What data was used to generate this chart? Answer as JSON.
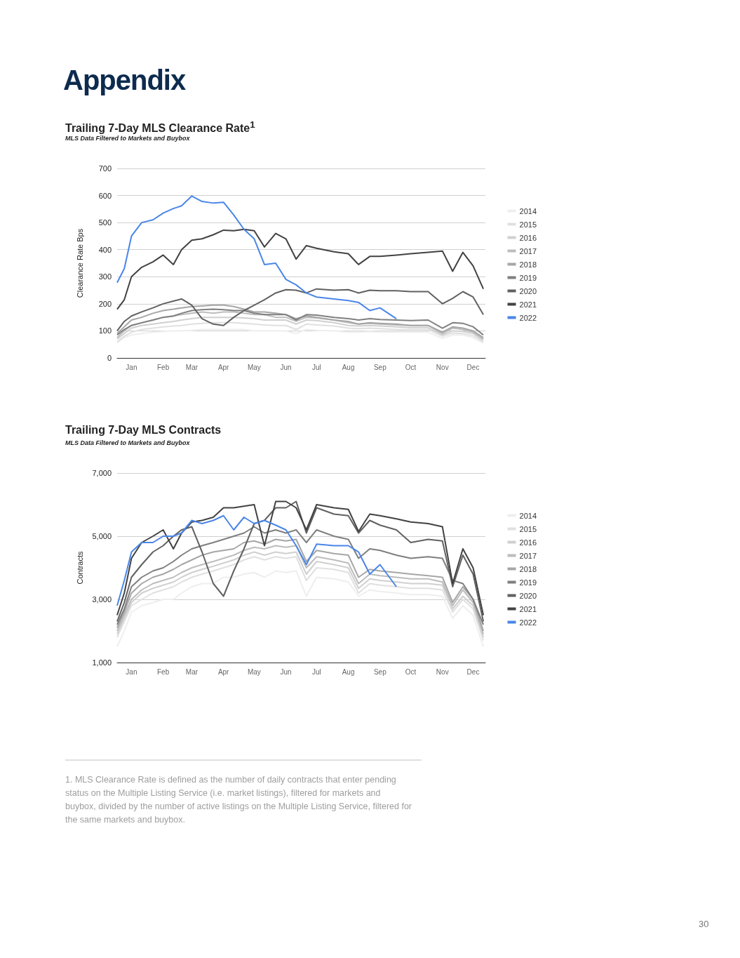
{
  "chart_data": [
    {
      "type": "line",
      "title": "Trailing 7-Day MLS Clearance Rate$^{1}$",
      "subtitle": "MLS Data Filtered to Markets and Buybox",
      "ylabel": "Clearance Rate Bps",
      "annotations": [
        "Appendix"
      ],
      "x": [
        "--01-01",
        "--01-08",
        "--01-15",
        "--01-25",
        "--02-05",
        "--02-15",
        "--02-25",
        "--03-05",
        "--03-15",
        "--03-25",
        "--04-05",
        "--04-15",
        "--04-25",
        "--05-05",
        "--05-15",
        "--05-25",
        "--06-05",
        "--06-15",
        "--06-25",
        "--07-05",
        "--07-15",
        "--08-01",
        "--08-15",
        "--08-25",
        "--09-05",
        "--09-15",
        "--10-01",
        "--10-15",
        "--11-01",
        "--11-15",
        "--11-25",
        "--12-05",
        "--12-15",
        "--12-25"
      ],
      "xlim": [
        "--01-01",
        "--12-27"
      ],
      "xticks": [
        {
          "value": "--01-15",
          "label": "Jan"
        },
        {
          "value": "--02-15",
          "label": "Feb"
        },
        {
          "value": "--03-15",
          "label": "Mar"
        },
        {
          "value": "--04-15",
          "label": "Apr"
        },
        {
          "value": "--05-15",
          "label": "May"
        },
        {
          "value": "--06-15",
          "label": "Jun"
        },
        {
          "value": "--07-15",
          "label": "Jul"
        },
        {
          "value": "--08-15",
          "label": "Aug"
        },
        {
          "value": "--09-15",
          "label": "Sep"
        },
        {
          "value": "--10-15",
          "label": "Oct"
        },
        {
          "value": "--11-15",
          "label": "Nov"
        },
        {
          "value": "--12-15",
          "label": "Dec"
        }
      ],
      "ylim": [
        0,
        700
      ],
      "yticks": [
        0,
        100,
        200,
        300,
        400,
        500,
        600,
        700
      ],
      "grid": "y",
      "legend": "right",
      "marker": "none",
      "series": [
        {
          "name": "2014",
          "color": "#eeeeee",
          "values": [
            55,
            75,
            85,
            90,
            95,
            98,
            100,
            100,
            102,
            105,
            105,
            105,
            105,
            105,
            100,
            100,
            100,
            100,
            90,
            105,
            102,
            100,
            95,
            95,
            98,
            95,
            95,
            95,
            95,
            72,
            85,
            85,
            75,
            55
          ]
        },
        {
          "name": "2015",
          "color": "#e0e0e0",
          "values": [
            60,
            80,
            95,
            105,
            110,
            115,
            118,
            120,
            125,
            128,
            130,
            130,
            130,
            128,
            125,
            122,
            120,
            120,
            105,
            125,
            122,
            118,
            110,
            108,
            110,
            108,
            105,
            105,
            105,
            80,
            92,
            90,
            82,
            60
          ]
        },
        {
          "name": "2016",
          "color": "#d0d0d0",
          "values": [
            70,
            90,
            110,
            120,
            125,
            130,
            135,
            140,
            145,
            150,
            150,
            150,
            150,
            148,
            145,
            140,
            140,
            140,
            125,
            140,
            138,
            130,
            120,
            118,
            120,
            118,
            115,
            112,
            112,
            85,
            100,
            98,
            90,
            65
          ]
        },
        {
          "name": "2017",
          "color": "#bdbdbd",
          "values": [
            75,
            100,
            120,
            130,
            140,
            150,
            155,
            160,
            165,
            170,
            165,
            170,
            170,
            165,
            160,
            160,
            150,
            150,
            135,
            150,
            148,
            140,
            130,
            125,
            128,
            125,
            122,
            120,
            120,
            90,
            110,
            105,
            95,
            70
          ]
        },
        {
          "name": "2018",
          "color": "#a6a6a6",
          "values": [
            90,
            115,
            140,
            150,
            165,
            175,
            180,
            185,
            190,
            192,
            195,
            195,
            190,
            180,
            170,
            170,
            165,
            160,
            145,
            155,
            150,
            140,
            135,
            125,
            130,
            128,
            125,
            120,
            120,
            95,
            115,
            110,
            100,
            75
          ]
        },
        {
          "name": "2019",
          "color": "#7f7f7f",
          "values": [
            85,
            105,
            120,
            130,
            140,
            150,
            155,
            165,
            175,
            178,
            180,
            178,
            175,
            175,
            165,
            160,
            160,
            160,
            140,
            160,
            158,
            150,
            145,
            140,
            145,
            142,
            140,
            138,
            140,
            110,
            130,
            128,
            115,
            85
          ]
        },
        {
          "name": "2020",
          "color": "#616161",
          "values": [
            100,
            135,
            155,
            170,
            185,
            200,
            210,
            218,
            195,
            145,
            125,
            120,
            150,
            175,
            195,
            215,
            240,
            252,
            250,
            240,
            255,
            250,
            252,
            240,
            250,
            248,
            248,
            245,
            245,
            200,
            220,
            245,
            225,
            160
          ]
        },
        {
          "name": "2021",
          "color": "#424242",
          "values": [
            180,
            215,
            300,
            335,
            355,
            380,
            345,
            400,
            435,
            440,
            455,
            472,
            470,
            475,
            470,
            410,
            460,
            440,
            365,
            415,
            405,
            392,
            385,
            345,
            375,
            375,
            380,
            385,
            390,
            395,
            320,
            390,
            340,
            255
          ]
        },
        {
          "name": "2022",
          "color": "#4a86e8",
          "values": [
            278,
            330,
            450,
            500,
            510,
            535,
            552,
            562,
            598,
            578,
            572,
            575,
            528,
            475,
            440,
            345,
            350,
            290,
            270,
            240,
            225,
            218,
            212,
            205,
            175,
            185,
            145,
            null,
            null,
            null,
            null,
            null,
            null,
            null
          ]
        }
      ]
    },
    {
      "type": "line",
      "title": "Trailing 7-Day MLS Contracts",
      "subtitle": "MLS Data Filtered to Markets and Buybox",
      "ylabel": "Contracts",
      "annotations": [
        "1. MLS Clearance Rate is defined as the number of daily contracts that enter pending status on the Multiple Listing Service (i.e. market listings), filtered for markets and buybox, divided by the number of active listings on the Multiple Listing Service, filtered for the same markets and buybox.",
        "30"
      ],
      "x": [
        "--01-01",
        "--01-08",
        "--01-15",
        "--01-25",
        "--02-05",
        "--02-15",
        "--02-25",
        "--03-05",
        "--03-15",
        "--03-25",
        "--04-05",
        "--04-15",
        "--04-25",
        "--05-05",
        "--05-15",
        "--05-25",
        "--06-05",
        "--06-15",
        "--06-25",
        "--07-05",
        "--07-15",
        "--08-01",
        "--08-15",
        "--08-25",
        "--09-05",
        "--09-15",
        "--10-01",
        "--10-15",
        "--11-01",
        "--11-15",
        "--11-25",
        "--12-05",
        "--12-15",
        "--12-25"
      ],
      "xlim": [
        "--01-01",
        "--12-27"
      ],
      "xticks": [
        {
          "value": "--01-15",
          "label": "Jan"
        },
        {
          "value": "--02-15",
          "label": "Feb"
        },
        {
          "value": "--03-15",
          "label": "Mar"
        },
        {
          "value": "--04-15",
          "label": "Apr"
        },
        {
          "value": "--05-15",
          "label": "May"
        },
        {
          "value": "--06-15",
          "label": "Jun"
        },
        {
          "value": "--07-15",
          "label": "Jul"
        },
        {
          "value": "--08-15",
          "label": "Aug"
        },
        {
          "value": "--09-15",
          "label": "Sep"
        },
        {
          "value": "--10-15",
          "label": "Oct"
        },
        {
          "value": "--11-15",
          "label": "Nov"
        },
        {
          "value": "--12-15",
          "label": "Dec"
        }
      ],
      "ylim": [
        1000,
        7000
      ],
      "yticks": [
        {
          "value": 1000,
          "label": "1,000"
        },
        {
          "value": 3000,
          "label": "3,000"
        },
        {
          "value": 5000,
          "label": "5,000"
        },
        {
          "value": 7000,
          "label": "7,000"
        }
      ],
      "grid": "y",
      "legend": "right",
      "marker": "none",
      "series": [
        {
          "name": "2014",
          "color": "#eeeeee",
          "values": [
            1500,
            2000,
            2600,
            2800,
            2900,
            3000,
            3000,
            3200,
            3400,
            3500,
            3500,
            3700,
            3700,
            3800,
            3850,
            3700,
            3900,
            3850,
            3900,
            3100,
            3700,
            3650,
            3550,
            3100,
            3300,
            3250,
            3200,
            3150,
            3150,
            3100,
            2400,
            2800,
            2500,
            1500
          ]
        },
        {
          "name": "2015",
          "color": "#e0e0e0",
          "values": [
            1800,
            2300,
            2800,
            3000,
            3200,
            3300,
            3400,
            3550,
            3700,
            3800,
            3900,
            4000,
            4100,
            4250,
            4350,
            4250,
            4350,
            4300,
            4350,
            3600,
            4000,
            3950,
            3850,
            3200,
            3500,
            3450,
            3400,
            3350,
            3350,
            3300,
            2600,
            3000,
            2700,
            1700
          ]
        },
        {
          "name": "2016",
          "color": "#d0d0d0",
          "values": [
            1900,
            2400,
            2900,
            3200,
            3350,
            3450,
            3550,
            3700,
            3850,
            3950,
            4050,
            4150,
            4250,
            4400,
            4500,
            4400,
            4500,
            4450,
            4500,
            3800,
            4200,
            4100,
            4000,
            3350,
            3650,
            3600,
            3550,
            3500,
            3500,
            3450,
            2700,
            3100,
            2800,
            1800
          ]
        },
        {
          "name": "2017",
          "color": "#bdbdbd",
          "values": [
            2000,
            2500,
            3000,
            3300,
            3500,
            3600,
            3700,
            3850,
            4000,
            4100,
            4200,
            4300,
            4400,
            4550,
            4650,
            4600,
            4700,
            4650,
            4700,
            4000,
            4350,
            4250,
            4150,
            3500,
            3800,
            3750,
            3700,
            3650,
            3650,
            3550,
            2800,
            3300,
            2900,
            1900
          ]
        },
        {
          "name": "2018",
          "color": "#a6a6a6",
          "values": [
            2100,
            2600,
            3200,
            3500,
            3700,
            3800,
            3950,
            4100,
            4250,
            4400,
            4500,
            4550,
            4600,
            4800,
            4850,
            4750,
            4900,
            4850,
            4900,
            4200,
            4550,
            4450,
            4400,
            3700,
            3950,
            3900,
            3850,
            3800,
            3750,
            3700,
            2900,
            3400,
            3000,
            2000
          ]
        },
        {
          "name": "2019",
          "color": "#7f7f7f",
          "values": [
            2200,
            2700,
            3400,
            3700,
            3900,
            4000,
            4200,
            4400,
            4600,
            4700,
            4800,
            4900,
            5000,
            5100,
            5300,
            5100,
            5200,
            5100,
            5200,
            4800,
            5200,
            5000,
            4900,
            4300,
            4600,
            4550,
            4400,
            4300,
            4350,
            4300,
            3600,
            3500,
            3000,
            2200
          ]
        },
        {
          "name": "2020",
          "color": "#616161",
          "values": [
            2300,
            2900,
            3700,
            4100,
            4500,
            4700,
            5000,
            5200,
            5300,
            4500,
            3500,
            3100,
            3900,
            4600,
            5400,
            5500,
            5900,
            5900,
            6100,
            5100,
            5900,
            5700,
            5650,
            5100,
            5500,
            5350,
            5200,
            4800,
            4900,
            4850,
            3400,
            4400,
            3800,
            2300
          ]
        },
        {
          "name": "2021",
          "color": "#424242",
          "values": [
            2500,
            3200,
            4300,
            4800,
            5000,
            5200,
            4600,
            5100,
            5450,
            5500,
            5600,
            5900,
            5900,
            5950,
            6000,
            4700,
            6100,
            6100,
            5900,
            5200,
            6000,
            5900,
            5850,
            5150,
            5700,
            5650,
            5550,
            5450,
            5400,
            5300,
            3500,
            4600,
            4000,
            2500
          ]
        },
        {
          "name": "2022",
          "color": "#4a86e8",
          "values": [
            2800,
            3600,
            4500,
            4800,
            4800,
            5000,
            5000,
            5100,
            5500,
            5400,
            5500,
            5650,
            5200,
            5600,
            5400,
            5500,
            5350,
            5200,
            4700,
            4100,
            4750,
            4700,
            4700,
            4500,
            3800,
            4100,
            3400,
            null,
            null,
            null,
            null,
            null,
            null,
            null
          ]
        }
      ]
    }
  ]
}
